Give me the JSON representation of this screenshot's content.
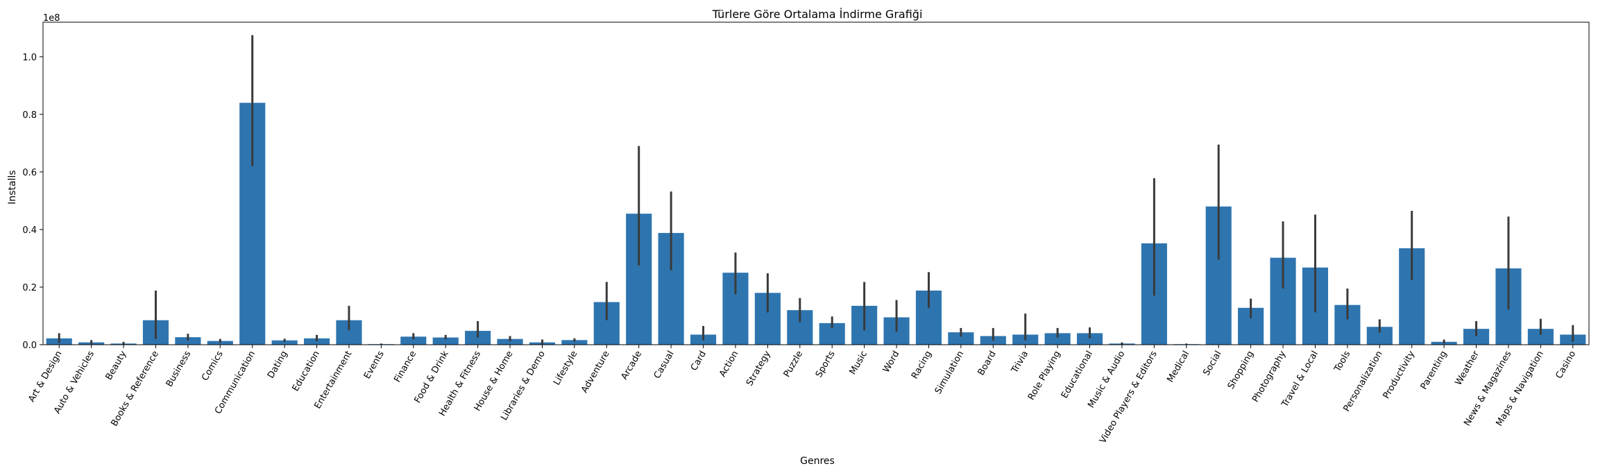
{
  "chart_data": {
    "type": "bar",
    "title": "Türlere Göre Ortalama İndirme Grafiği",
    "xlabel": "Genres",
    "ylabel": "Installs",
    "y_offset_text": "1e8",
    "ylim": [
      0,
      1.12
    ],
    "yticks": [
      0.0,
      0.2,
      0.4,
      0.6,
      0.8,
      1.0
    ],
    "ytick_labels": [
      "0.0",
      "0.2",
      "0.4",
      "0.6",
      "0.8",
      "1.0"
    ],
    "bar_color": "#2e75b0",
    "errorbar_color": "#3a3a3a",
    "grid": false,
    "categories": [
      "Art & Design",
      "Auto & Vehicles",
      "Beauty",
      "Books & Reference",
      "Business",
      "Comics",
      "Communication",
      "Dating",
      "Education",
      "Entertainment",
      "Events",
      "Finance",
      "Food & Drink",
      "Health & Fitness",
      "House & Home",
      "Libraries & Demo",
      "Lifestyle",
      "Adventure",
      "Arcade",
      "Casual",
      "Card",
      "Action",
      "Strategy",
      "Puzzle",
      "Sports",
      "Music",
      "Word",
      "Racing",
      "Simulation",
      "Board",
      "Trivia",
      "Role Playing",
      "Educational",
      "Music & Audio",
      "Video Players & Editors",
      "Medical",
      "Social",
      "Shopping",
      "Photography",
      "Travel & Local",
      "Tools",
      "Personalization",
      "Productivity",
      "Parenting",
      "Weather",
      "News & Magazines",
      "Maps & Navigation",
      "Casino"
    ],
    "values": [
      0.022,
      0.008,
      0.004,
      0.085,
      0.026,
      0.013,
      0.84,
      0.015,
      0.022,
      0.085,
      0.002,
      0.028,
      0.025,
      0.048,
      0.02,
      0.008,
      0.016,
      0.148,
      0.455,
      0.388,
      0.035,
      0.25,
      0.18,
      0.12,
      0.075,
      0.135,
      0.095,
      0.188,
      0.043,
      0.03,
      0.035,
      0.04,
      0.04,
      0.004,
      0.352,
      0.002,
      0.48,
      0.128,
      0.302,
      0.268,
      0.138,
      0.062,
      0.335,
      0.01,
      0.055,
      0.265,
      0.055,
      0.035
    ],
    "err_low": [
      0.006,
      0.002,
      0.0,
      0.02,
      0.015,
      0.006,
      0.62,
      0.009,
      0.012,
      0.05,
      0.0,
      0.018,
      0.018,
      0.025,
      0.012,
      0.002,
      0.01,
      0.085,
      0.275,
      0.258,
      0.015,
      0.175,
      0.112,
      0.078,
      0.058,
      0.05,
      0.045,
      0.128,
      0.028,
      0.014,
      0.015,
      0.025,
      0.022,
      0.0,
      0.17,
      0.0,
      0.295,
      0.092,
      0.195,
      0.112,
      0.088,
      0.042,
      0.225,
      0.004,
      0.03,
      0.122,
      0.035,
      0.01
    ],
    "err_high": [
      0.04,
      0.016,
      0.01,
      0.188,
      0.038,
      0.02,
      1.075,
      0.021,
      0.034,
      0.135,
      0.004,
      0.04,
      0.034,
      0.082,
      0.03,
      0.018,
      0.022,
      0.218,
      0.69,
      0.532,
      0.065,
      0.32,
      0.248,
      0.162,
      0.098,
      0.218,
      0.155,
      0.252,
      0.058,
      0.058,
      0.108,
      0.058,
      0.06,
      0.008,
      0.578,
      0.004,
      0.695,
      0.16,
      0.428,
      0.452,
      0.195,
      0.088,
      0.465,
      0.018,
      0.082,
      0.445,
      0.09,
      0.068
    ]
  }
}
